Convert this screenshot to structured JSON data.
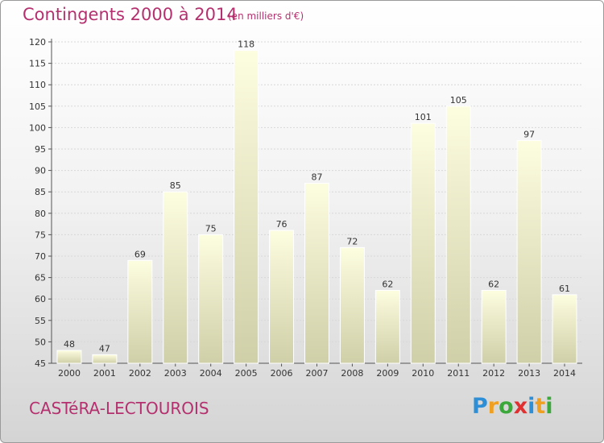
{
  "title": "Contingents 2000 à 2014",
  "subtitle": "(en milliers d'€)",
  "commune": "CASTéRA-LECTOUROIS",
  "logo": {
    "letters": [
      "P",
      "r",
      "o",
      "x",
      "i",
      "t",
      "i"
    ],
    "colors": [
      "#2f8fd6",
      "#f0a020",
      "#3aa83a",
      "#e03030",
      "#2f8fd6",
      "#f0a020",
      "#3aa83a"
    ]
  },
  "colors": {
    "accent": "#b5306e",
    "bar_top": "#fdfde0",
    "bar_bottom": "#cfcfa8"
  },
  "chart_data": {
    "type": "bar",
    "categories": [
      "2000",
      "2001",
      "2002",
      "2003",
      "2004",
      "2005",
      "2006",
      "2007",
      "2008",
      "2009",
      "2010",
      "2011",
      "2012",
      "2013",
      "2014"
    ],
    "values": [
      48,
      47,
      69,
      85,
      75,
      118,
      76,
      87,
      72,
      62,
      101,
      105,
      62,
      97,
      61
    ],
    "data_labels": [
      "48",
      "47",
      "69",
      "85",
      "75",
      "118",
      "76",
      "87",
      "72",
      "62",
      "101",
      "105",
      "62",
      "97",
      "61"
    ],
    "ylim": [
      45,
      120
    ],
    "yticks": [
      "45",
      "50",
      "55",
      "60",
      "65",
      "70",
      "75",
      "80",
      "85",
      "90",
      "95",
      "100",
      "105",
      "110",
      "115",
      "120"
    ],
    "grid": true,
    "title": "Contingents 2000 à 2014",
    "xlabel": "",
    "ylabel": ""
  }
}
